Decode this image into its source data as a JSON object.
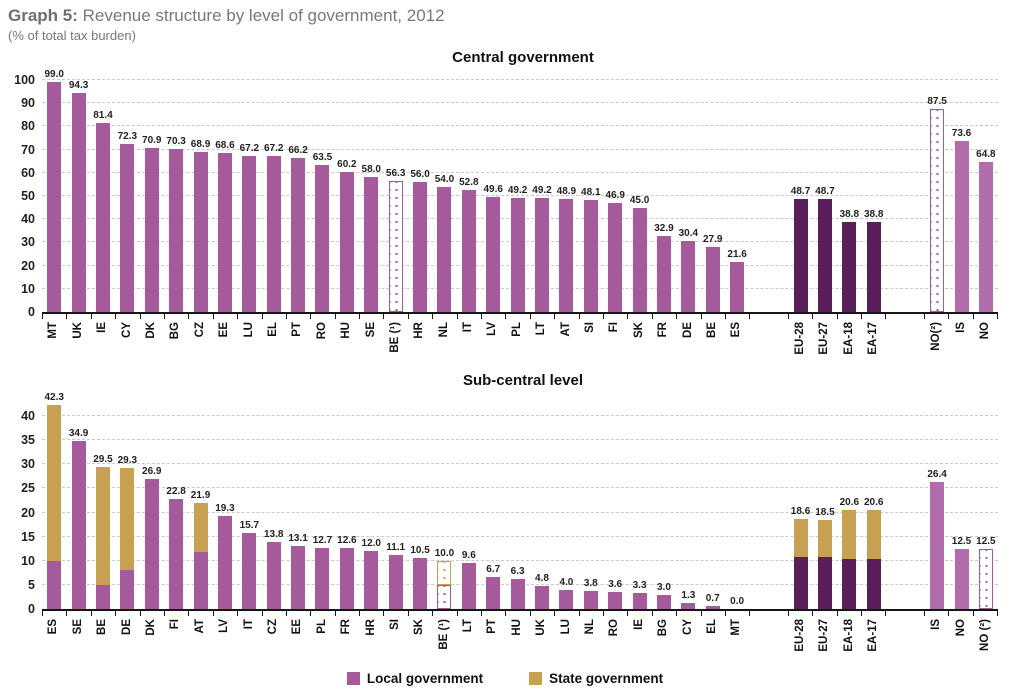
{
  "header": {
    "title_prefix": "Graph 5:",
    "title_rest": " Revenue structure by level of government, 2012",
    "subtitle": "(% of total tax burden)"
  },
  "colors": {
    "local_government": "#a55a9c",
    "state_government": "#c8a051",
    "eu_aggregate_dark": "#5a1e5c",
    "efta_light": "#b26cae",
    "gridline": "#c9c9c9",
    "header_gray": "#77787b"
  },
  "legend": {
    "position": "bottom-center",
    "items": [
      {
        "label": "Local government",
        "color": "#a55a9c"
      },
      {
        "label": "State government",
        "color": "#c8a051"
      }
    ]
  },
  "chart_data": [
    {
      "type": "bar",
      "title": "Central government",
      "ylabel": "% of total tax burden",
      "ylim": [
        0,
        100
      ],
      "yticks": [
        0,
        10,
        20,
        30,
        40,
        50,
        60,
        70,
        80,
        90,
        100
      ],
      "grid": "dashed-horizontal",
      "bars": [
        {
          "label": "MT",
          "value": 99.0,
          "style": "normal"
        },
        {
          "label": "UK",
          "value": 94.3,
          "style": "normal"
        },
        {
          "label": "IE",
          "value": 81.4,
          "style": "normal"
        },
        {
          "label": "CY",
          "value": 72.3,
          "style": "normal"
        },
        {
          "label": "DK",
          "value": 70.9,
          "style": "normal"
        },
        {
          "label": "BG",
          "value": 70.3,
          "style": "normal"
        },
        {
          "label": "CZ",
          "value": 68.9,
          "style": "normal"
        },
        {
          "label": "EE",
          "value": 68.6,
          "style": "normal"
        },
        {
          "label": "LU",
          "value": 67.2,
          "style": "normal"
        },
        {
          "label": "EL",
          "value": 67.2,
          "style": "normal"
        },
        {
          "label": "PT",
          "value": 66.2,
          "style": "normal"
        },
        {
          "label": "RO",
          "value": 63.5,
          "style": "normal"
        },
        {
          "label": "HU",
          "value": 60.2,
          "style": "normal"
        },
        {
          "label": "SE",
          "value": 58.0,
          "style": "normal"
        },
        {
          "label": "BE (¹)",
          "value": 56.3,
          "style": "dotted"
        },
        {
          "label": "HR",
          "value": 56.0,
          "style": "normal"
        },
        {
          "label": "NL",
          "value": 54.0,
          "style": "normal"
        },
        {
          "label": "IT",
          "value": 52.8,
          "style": "normal"
        },
        {
          "label": "LV",
          "value": 49.6,
          "style": "normal"
        },
        {
          "label": "PL",
          "value": 49.2,
          "style": "normal"
        },
        {
          "label": "LT",
          "value": 49.2,
          "style": "normal"
        },
        {
          "label": "AT",
          "value": 48.9,
          "style": "normal"
        },
        {
          "label": "SI",
          "value": 48.1,
          "style": "normal"
        },
        {
          "label": "FI",
          "value": 46.9,
          "style": "normal"
        },
        {
          "label": "SK",
          "value": 45.0,
          "style": "normal"
        },
        {
          "label": "FR",
          "value": 32.9,
          "style": "normal"
        },
        {
          "label": "DE",
          "value": 30.4,
          "style": "normal"
        },
        {
          "label": "BE",
          "value": 27.9,
          "style": "normal"
        },
        {
          "label": "ES",
          "value": 21.6,
          "style": "normal"
        },
        {
          "label": "EU-28",
          "value": 48.7,
          "style": "dark",
          "spacer_before": true
        },
        {
          "label": "EU-27",
          "value": 48.7,
          "style": "dark"
        },
        {
          "label": "EA-18",
          "value": 38.8,
          "style": "dark"
        },
        {
          "label": "EA-17",
          "value": 38.8,
          "style": "dark"
        },
        {
          "label": "NO(²)",
          "value": 87.5,
          "style": "dotted",
          "spacer_before": true
        },
        {
          "label": "IS",
          "value": 73.6,
          "style": "light"
        },
        {
          "label": "NO",
          "value": 64.8,
          "style": "light"
        }
      ]
    },
    {
      "type": "stacked-bar",
      "title": "Sub-central level",
      "ylabel": "% of total tax burden",
      "ylim": [
        0,
        40
      ],
      "yticks": [
        0,
        5,
        10,
        15,
        20,
        25,
        30,
        35,
        40
      ],
      "grid": "dashed-horizontal",
      "series_names": [
        "Local government",
        "State government"
      ],
      "note": "local/state split estimated from bar segments; totals are the printed data labels",
      "bars": [
        {
          "label": "ES",
          "total": 42.3,
          "local": 10.0,
          "state": 32.3,
          "style": "normal"
        },
        {
          "label": "SE",
          "total": 34.9,
          "local": 34.9,
          "state": 0,
          "style": "normal"
        },
        {
          "label": "BE",
          "total": 29.5,
          "local": 4.9,
          "state": 24.6,
          "style": "normal"
        },
        {
          "label": "DE",
          "total": 29.3,
          "local": 8.0,
          "state": 21.3,
          "style": "normal"
        },
        {
          "label": "DK",
          "total": 26.9,
          "local": 26.9,
          "state": 0,
          "style": "normal"
        },
        {
          "label": "FI",
          "total": 22.8,
          "local": 22.8,
          "state": 0,
          "style": "normal"
        },
        {
          "label": "AT",
          "total": 21.9,
          "local": 11.8,
          "state": 10.1,
          "style": "normal"
        },
        {
          "label": "LV",
          "total": 19.3,
          "local": 19.3,
          "state": 0,
          "style": "normal"
        },
        {
          "label": "IT",
          "total": 15.7,
          "local": 15.7,
          "state": 0,
          "style": "normal"
        },
        {
          "label": "CZ",
          "total": 13.8,
          "local": 13.8,
          "state": 0,
          "style": "normal"
        },
        {
          "label": "EE",
          "total": 13.1,
          "local": 13.1,
          "state": 0,
          "style": "normal"
        },
        {
          "label": "PL",
          "total": 12.7,
          "local": 12.7,
          "state": 0,
          "style": "normal"
        },
        {
          "label": "FR",
          "total": 12.6,
          "local": 12.6,
          "state": 0,
          "style": "normal"
        },
        {
          "label": "HR",
          "total": 12.0,
          "local": 12.0,
          "state": 0,
          "style": "normal"
        },
        {
          "label": "SI",
          "total": 11.1,
          "local": 11.1,
          "state": 0,
          "style": "normal"
        },
        {
          "label": "SK",
          "total": 10.5,
          "local": 10.5,
          "state": 0,
          "style": "normal"
        },
        {
          "label": "BE (¹)",
          "total": 10.0,
          "local": 4.9,
          "state": 5.1,
          "style": "dotted"
        },
        {
          "label": "LT",
          "total": 9.6,
          "local": 9.6,
          "state": 0,
          "style": "normal"
        },
        {
          "label": "PT",
          "total": 6.7,
          "local": 6.7,
          "state": 0,
          "style": "normal"
        },
        {
          "label": "HU",
          "total": 6.3,
          "local": 6.3,
          "state": 0,
          "style": "normal"
        },
        {
          "label": "UK",
          "total": 4.8,
          "local": 4.8,
          "state": 0,
          "style": "normal"
        },
        {
          "label": "LU",
          "total": 4.0,
          "local": 4.0,
          "state": 0,
          "style": "normal"
        },
        {
          "label": "NL",
          "total": 3.8,
          "local": 3.8,
          "state": 0,
          "style": "normal"
        },
        {
          "label": "RO",
          "total": 3.6,
          "local": 3.6,
          "state": 0,
          "style": "normal"
        },
        {
          "label": "IE",
          "total": 3.3,
          "local": 3.3,
          "state": 0,
          "style": "normal"
        },
        {
          "label": "BG",
          "total": 3.0,
          "local": 3.0,
          "state": 0,
          "style": "normal"
        },
        {
          "label": "CY",
          "total": 1.3,
          "local": 1.3,
          "state": 0,
          "style": "normal"
        },
        {
          "label": "EL",
          "total": 0.7,
          "local": 0.7,
          "state": 0,
          "style": "normal"
        },
        {
          "label": "MT",
          "total": 0.0,
          "local": 0.0,
          "state": 0,
          "style": "normal"
        },
        {
          "label": "EU-28",
          "total": 18.6,
          "local": 10.8,
          "state": 7.8,
          "style": "dark",
          "spacer_before": true
        },
        {
          "label": "EU-27",
          "total": 18.5,
          "local": 10.8,
          "state": 7.7,
          "style": "dark"
        },
        {
          "label": "EA-18",
          "total": 20.6,
          "local": 10.4,
          "state": 10.2,
          "style": "dark"
        },
        {
          "label": "EA-17",
          "total": 20.6,
          "local": 10.4,
          "state": 10.2,
          "style": "dark"
        },
        {
          "label": "IS",
          "total": 26.4,
          "local": 26.4,
          "state": 0,
          "style": "light",
          "spacer_before": true
        },
        {
          "label": "NO",
          "total": 12.5,
          "local": 12.5,
          "state": 0,
          "style": "light"
        },
        {
          "label": "NO (²)",
          "total": 12.5,
          "local": 12.5,
          "state": 0,
          "style": "dotted"
        }
      ]
    }
  ]
}
